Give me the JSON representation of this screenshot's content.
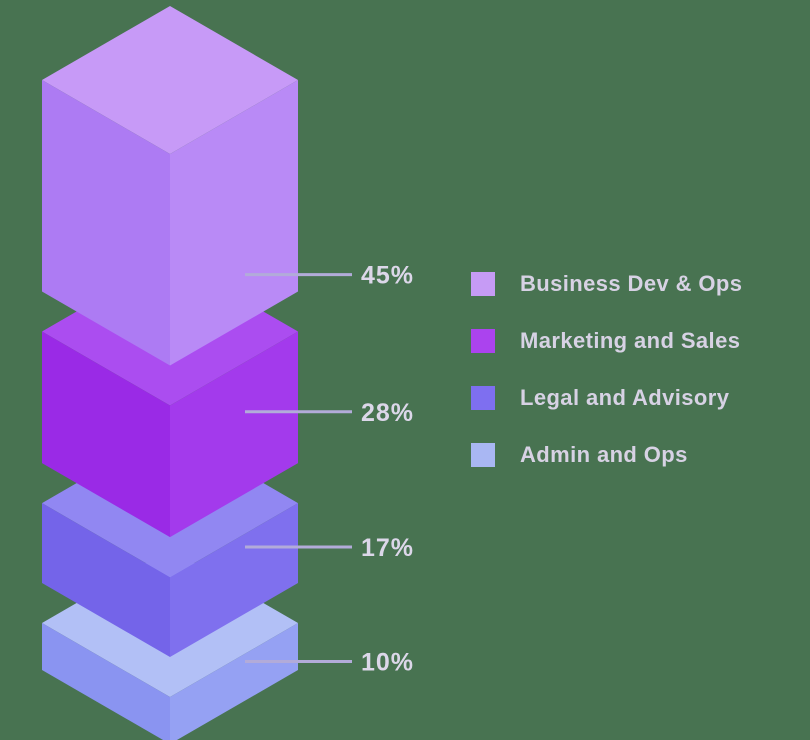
{
  "chart_data": {
    "type": "bar",
    "variant": "isometric-3d-stacked-floating",
    "title": "",
    "unit": "%",
    "legend_position": "right",
    "background": "#487351",
    "callout_line_color": "#b2abd9",
    "label_color": "#dcd7e9",
    "legend_text_color": "#d7d2e4",
    "categories": [
      "Business Dev & Ops",
      "Marketing and Sales",
      "Legal and Advisory",
      "Admin and Ops"
    ],
    "values": [
      45,
      28,
      17,
      10
    ],
    "series": [
      {
        "name": "Business Dev & Ops",
        "value": 45,
        "label": "45%",
        "colors": {
          "top": "#c79af7",
          "left": "#ad7bf3",
          "right": "#b98af6",
          "swatch": "#c69bf5"
        }
      },
      {
        "name": "Marketing and Sales",
        "value": 28,
        "label": "28%",
        "colors": {
          "top": "#ab4df0",
          "left": "#9a2ae6",
          "right": "#a33aec",
          "swatch": "#ab43ee"
        }
      },
      {
        "name": "Legal and Advisory",
        "value": 17,
        "label": "17%",
        "colors": {
          "top": "#9187f2",
          "left": "#7464e9",
          "right": "#7f70ee",
          "swatch": "#7e6ff0"
        }
      },
      {
        "name": "Admin and Ops",
        "value": 10,
        "label": "10%",
        "colors": {
          "top": "#b2c0f6",
          "left": "#8a94f1",
          "right": "#95a1f3",
          "swatch": "#a9b7f3"
        }
      }
    ]
  }
}
